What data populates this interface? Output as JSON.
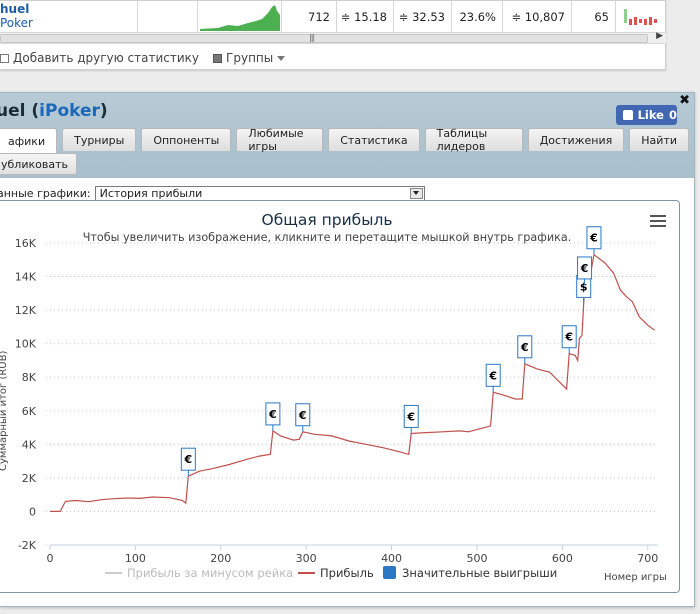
{
  "stats_row": {
    "player_name": "huel",
    "player_site": "Poker",
    "cells": [
      "712",
      "≑ 15.18",
      "≑ 32.53",
      "23.6%",
      "≑ 10,807",
      "65"
    ]
  },
  "stats_actions": {
    "add_stat": "Добавить другую статистику",
    "groups": "Группы"
  },
  "panel": {
    "title_name": "uel",
    "title_site": "iPoker",
    "like_label": "Like",
    "like_count": "0",
    "tabs": [
      "афики",
      "Турниры",
      "Оппоненты",
      "Любимые игры",
      "Статистика",
      "Таблицы лидеров",
      "Достижения",
      "Найти"
    ],
    "publish_label": "убликовать",
    "selector_label": "анные графики:",
    "selector_value": "История прибыли"
  },
  "chart_data": {
    "type": "line",
    "title": "Общая прибыль",
    "subtitle": "Чтобы увеличить изображение, кликните и перетащите мышкой внутрь графика.",
    "ylabel": "Суммарный итог (RUB)",
    "xlabel": "Номер игры",
    "xlim": [
      0,
      712
    ],
    "ylim": [
      -2000,
      16000
    ],
    "yticks": [
      -2000,
      0,
      2000,
      4000,
      6000,
      8000,
      10000,
      12000,
      14000,
      16000
    ],
    "ytick_labels": [
      "-2K",
      "0",
      "2K",
      "4K",
      "6K",
      "8K",
      "10K",
      "12K",
      "14K",
      "16K"
    ],
    "xticks": [
      0,
      100,
      200,
      300,
      400,
      500,
      600,
      700
    ],
    "grid": true,
    "legend_placement": "bottom",
    "legend": [
      "Прибыль за минусом рейка",
      "Прибыль",
      "Значительные выигрыши"
    ],
    "series": [
      {
        "name": "Прибыль",
        "color": "#c0504d",
        "points": [
          [
            0,
            0
          ],
          [
            12,
            0
          ],
          [
            18,
            600
          ],
          [
            30,
            650
          ],
          [
            45,
            580
          ],
          [
            60,
            700
          ],
          [
            75,
            760
          ],
          [
            90,
            800
          ],
          [
            105,
            780
          ],
          [
            120,
            860
          ],
          [
            140,
            820
          ],
          [
            155,
            650
          ],
          [
            159,
            500
          ],
          [
            162,
            2100
          ],
          [
            175,
            2400
          ],
          [
            190,
            2550
          ],
          [
            210,
            2800
          ],
          [
            230,
            3100
          ],
          [
            245,
            3300
          ],
          [
            258,
            3400
          ],
          [
            261,
            4800
          ],
          [
            270,
            4500
          ],
          [
            285,
            4250
          ],
          [
            292,
            4300
          ],
          [
            296,
            4750
          ],
          [
            310,
            4600
          ],
          [
            330,
            4500
          ],
          [
            350,
            4200
          ],
          [
            370,
            4000
          ],
          [
            390,
            3800
          ],
          [
            410,
            3550
          ],
          [
            420,
            3400
          ],
          [
            423,
            4650
          ],
          [
            440,
            4700
          ],
          [
            460,
            4750
          ],
          [
            480,
            4800
          ],
          [
            490,
            4750
          ],
          [
            494,
            4800
          ],
          [
            516,
            5100
          ],
          [
            519,
            7100
          ],
          [
            530,
            6950
          ],
          [
            545,
            6700
          ],
          [
            553,
            6700
          ],
          [
            556,
            8800
          ],
          [
            570,
            8500
          ],
          [
            585,
            8300
          ],
          [
            605,
            7300
          ],
          [
            608,
            9400
          ],
          [
            615,
            9300
          ],
          [
            618,
            9000
          ],
          [
            620,
            10300
          ],
          [
            623,
            10500
          ],
          [
            625,
            12400
          ],
          [
            626,
            13500
          ],
          [
            628,
            12800
          ],
          [
            632,
            13900
          ],
          [
            637,
            15300
          ],
          [
            650,
            14800
          ],
          [
            660,
            14200
          ],
          [
            668,
            13200
          ],
          [
            675,
            12800
          ],
          [
            682,
            12500
          ],
          [
            690,
            11600
          ],
          [
            700,
            11100
          ],
          [
            708,
            10800
          ]
        ]
      }
    ],
    "significant_wins": [
      {
        "x": 162,
        "y": 2100,
        "symbol": "€"
      },
      {
        "x": 261,
        "y": 4800,
        "symbol": "€"
      },
      {
        "x": 296,
        "y": 4750,
        "symbol": "€"
      },
      {
        "x": 423,
        "y": 4650,
        "symbol": "€"
      },
      {
        "x": 519,
        "y": 7100,
        "symbol": "€"
      },
      {
        "x": 556,
        "y": 8800,
        "symbol": "€"
      },
      {
        "x": 608,
        "y": 9400,
        "symbol": "€"
      },
      {
        "x": 625,
        "y": 12400,
        "symbol": "$"
      },
      {
        "x": 626,
        "y": 13500,
        "symbol": "€"
      },
      {
        "x": 637,
        "y": 15300,
        "symbol": "€"
      }
    ]
  }
}
